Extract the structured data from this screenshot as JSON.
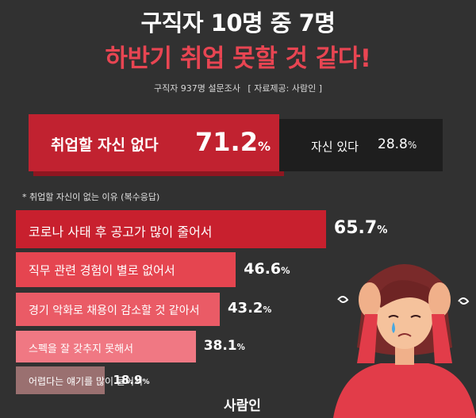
{
  "header": {
    "title_line1": "구직자 10명 중 7명",
    "title_line2": "하반기 취업 못할 것 같다!",
    "survey": "구직자 937명 설문조사",
    "source": "[ 자료제공: 사람인 ]"
  },
  "split": {
    "no_label": "취업할 자신 없다",
    "no_value": "71.2",
    "yes_label": "자신 있다",
    "yes_value": "28.8",
    "pct_sign": "%"
  },
  "reasons_title": "* 취업할 자신이 없는 이유 (복수응답)",
  "brand": "사람인",
  "colors": {
    "background": "#313131",
    "accent_red": "#c12230",
    "title_red": "#e84552",
    "bars": [
      "#c8202e",
      "#e54550",
      "#ea5b66",
      "#f07883",
      "#9a7070"
    ]
  },
  "chart_data": [
    {
      "type": "bar",
      "categories": [
        "취업할 자신 없다",
        "자신 있다"
      ],
      "values": [
        71.2,
        28.8
      ],
      "unit": "%"
    },
    {
      "type": "bar",
      "orientation": "horizontal",
      "title": "* 취업할 자신이 없는 이유 (복수응답)",
      "categories": [
        "코로나 사태 후 공고가 많이 줄어서",
        "직무 관련 경험이 별로 없어서",
        "경기 악화로 채용이 감소할 것 같아서",
        "스펙을 잘 갖추지 못해서",
        "어렵다는 얘기를 많이 들어서"
      ],
      "values": [
        65.7,
        46.6,
        43.2,
        38.1,
        18.9
      ],
      "value_labels": [
        "65.7",
        "46.6",
        "43.2",
        "38.1",
        "18.9"
      ],
      "unit": "%"
    }
  ]
}
